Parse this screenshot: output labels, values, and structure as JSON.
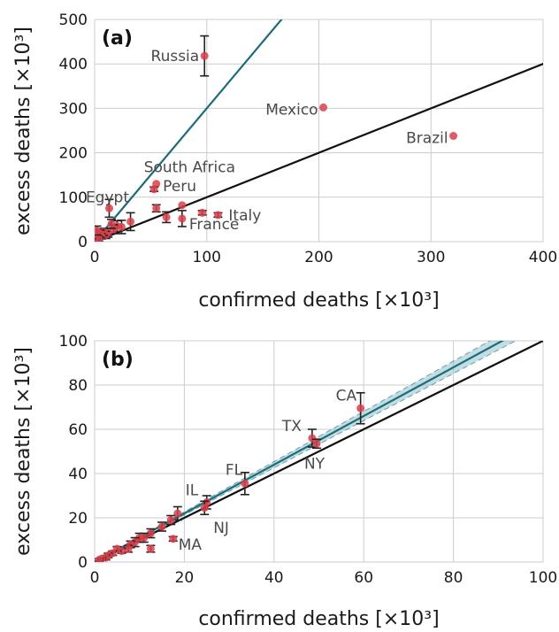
{
  "chart_data": [
    {
      "type": "scatter",
      "panel_label": "(a)",
      "xlabel": "confirmed deaths [×10³]",
      "ylabel": "excess deaths [×10³]",
      "xlim": [
        0,
        400
      ],
      "ylim": [
        0,
        500
      ],
      "xticks": [
        0,
        100,
        200,
        300,
        400
      ],
      "yticks": [
        0,
        100,
        200,
        300,
        400,
        500
      ],
      "grid": true,
      "marker_color": "#d9404a",
      "points": [
        {
          "x": 98,
          "y": 418,
          "err": 45,
          "label": "Russia"
        },
        {
          "x": 204,
          "y": 302,
          "err": 0,
          "label": "Mexico"
        },
        {
          "x": 320,
          "y": 238,
          "err": 0,
          "label": "Brazil"
        },
        {
          "x": 55,
          "y": 130,
          "err": 0,
          "label": "South Africa"
        },
        {
          "x": 53,
          "y": 118,
          "err": 5,
          "label": "Peru"
        },
        {
          "x": 13,
          "y": 75,
          "err": 20,
          "label": "Egypt"
        },
        {
          "x": 110,
          "y": 60,
          "err": 5,
          "label": "Italy"
        },
        {
          "x": 78,
          "y": 52,
          "err": 18,
          "label": "France"
        },
        {
          "x": 78,
          "y": 82,
          "err": 0,
          "label": ""
        },
        {
          "x": 96,
          "y": 65,
          "err": 5,
          "label": ""
        },
        {
          "x": 55,
          "y": 75,
          "err": 8,
          "label": ""
        },
        {
          "x": 64,
          "y": 55,
          "err": 12,
          "label": ""
        },
        {
          "x": 32,
          "y": 45,
          "err": 20,
          "label": ""
        },
        {
          "x": 24,
          "y": 33,
          "err": 15,
          "label": ""
        },
        {
          "x": 20,
          "y": 35,
          "err": 12,
          "label": ""
        },
        {
          "x": 17,
          "y": 28,
          "err": 10,
          "label": ""
        },
        {
          "x": 15,
          "y": 40,
          "err": 10,
          "label": ""
        },
        {
          "x": 12,
          "y": 20,
          "err": 10,
          "label": ""
        },
        {
          "x": 10,
          "y": 15,
          "err": 8,
          "label": ""
        },
        {
          "x": 8,
          "y": 22,
          "err": 8,
          "label": ""
        },
        {
          "x": 6,
          "y": 12,
          "err": 6,
          "label": ""
        },
        {
          "x": 5,
          "y": 18,
          "err": 8,
          "label": ""
        },
        {
          "x": 3,
          "y": 8,
          "err": 5,
          "label": ""
        },
        {
          "x": 2,
          "y": 25,
          "err": 10,
          "label": ""
        },
        {
          "x": 1,
          "y": 5,
          "err": 4,
          "label": ""
        },
        {
          "x": 4,
          "y": 3,
          "err": 3,
          "label": ""
        }
      ],
      "lines": [
        {
          "kind": "identity",
          "slope": 1,
          "color": "#111111"
        },
        {
          "kind": "fit",
          "slope": 3.0,
          "color": "#1e6b7a"
        }
      ]
    },
    {
      "type": "scatter",
      "panel_label": "(b)",
      "xlabel": "confirmed deaths [×10³]",
      "ylabel": "excess deaths [×10³]",
      "xlim": [
        0,
        100
      ],
      "ylim": [
        0,
        100
      ],
      "xticks": [
        0,
        20,
        40,
        60,
        80,
        100
      ],
      "yticks": [
        0,
        20,
        40,
        60,
        80,
        100
      ],
      "grid": true,
      "marker_color": "#d9404a",
      "points": [
        {
          "x": 59.3,
          "y": 69.5,
          "err": 7,
          "label": "CA"
        },
        {
          "x": 48.5,
          "y": 56,
          "err": 4,
          "label": "TX"
        },
        {
          "x": 49.5,
          "y": 53.5,
          "err": 2,
          "label": "NY"
        },
        {
          "x": 33.5,
          "y": 35.5,
          "err": 5,
          "label": "FL"
        },
        {
          "x": 25,
          "y": 27,
          "err": 3,
          "label": "IL"
        },
        {
          "x": 24.5,
          "y": 24.5,
          "err": 3,
          "label": "NJ"
        },
        {
          "x": 17.5,
          "y": 10.5,
          "err": 1,
          "label": "MA"
        },
        {
          "x": 18.5,
          "y": 22,
          "err": 3,
          "label": ""
        },
        {
          "x": 17,
          "y": 19,
          "err": 2,
          "label": ""
        },
        {
          "x": 15,
          "y": 16,
          "err": 2,
          "label": ""
        },
        {
          "x": 12.5,
          "y": 6,
          "err": 1.5,
          "label": ""
        },
        {
          "x": 12.5,
          "y": 13,
          "err": 2,
          "label": ""
        },
        {
          "x": 11,
          "y": 11,
          "err": 2,
          "label": ""
        },
        {
          "x": 10,
          "y": 11,
          "err": 2,
          "label": ""
        },
        {
          "x": 9,
          "y": 9,
          "err": 2,
          "label": ""
        },
        {
          "x": 8,
          "y": 8,
          "err": 1.5,
          "label": ""
        },
        {
          "x": 7.5,
          "y": 6,
          "err": 1.5,
          "label": ""
        },
        {
          "x": 6,
          "y": 5,
          "err": 1,
          "label": ""
        },
        {
          "x": 5,
          "y": 6,
          "err": 1,
          "label": ""
        },
        {
          "x": 4,
          "y": 4,
          "err": 1,
          "label": ""
        },
        {
          "x": 3,
          "y": 3,
          "err": 1,
          "label": ""
        },
        {
          "x": 2.5,
          "y": 2,
          "err": 1,
          "label": ""
        },
        {
          "x": 1.5,
          "y": 1.5,
          "err": 0.5,
          "label": ""
        },
        {
          "x": 1,
          "y": 1,
          "err": 0.5,
          "label": ""
        }
      ],
      "lines": [
        {
          "kind": "identity",
          "slope": 1,
          "color": "#111111"
        },
        {
          "kind": "fit",
          "slope": 1.1,
          "band": 0.035,
          "color": "#1e6b7a",
          "band_color": "#8fc3cc"
        }
      ]
    }
  ]
}
